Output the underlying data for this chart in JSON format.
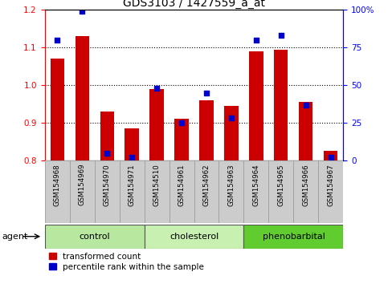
{
  "title": "GDS3103 / 1427559_a_at",
  "samples": [
    "GSM154968",
    "GSM154969",
    "GSM154970",
    "GSM154971",
    "GSM154510",
    "GSM154961",
    "GSM154962",
    "GSM154963",
    "GSM154964",
    "GSM154965",
    "GSM154966",
    "GSM154967"
  ],
  "red_values": [
    1.07,
    1.13,
    0.93,
    0.885,
    0.99,
    0.91,
    0.96,
    0.945,
    1.09,
    1.095,
    0.955,
    0.825
  ],
  "blue_percentiles": [
    80,
    99,
    5,
    2,
    48,
    25,
    45,
    28,
    80,
    83,
    37,
    2
  ],
  "ylim_left": [
    0.8,
    1.2
  ],
  "ylim_right": [
    0,
    100
  ],
  "yticks_left": [
    0.8,
    0.9,
    1.0,
    1.1,
    1.2
  ],
  "yticks_right": [
    0,
    25,
    50,
    75,
    100
  ],
  "groups": [
    {
      "label": "control",
      "indices": [
        0,
        1,
        2,
        3
      ],
      "color": "#b8e8a0"
    },
    {
      "label": "cholesterol",
      "indices": [
        4,
        5,
        6,
        7
      ],
      "color": "#c8f0b0"
    },
    {
      "label": "phenobarbital",
      "indices": [
        8,
        9,
        10,
        11
      ],
      "color": "#60cc30"
    }
  ],
  "bar_color_red": "#cc0000",
  "bar_color_blue": "#0000cc",
  "bar_width": 0.55,
  "grid_dotted_values": [
    0.9,
    1.0,
    1.1
  ],
  "background_plot": "#ffffff",
  "agent_label": "agent",
  "legend_red": "transformed count",
  "legend_blue": "percentile rank within the sample",
  "title_fontsize": 10,
  "tick_fontsize": 7.5
}
